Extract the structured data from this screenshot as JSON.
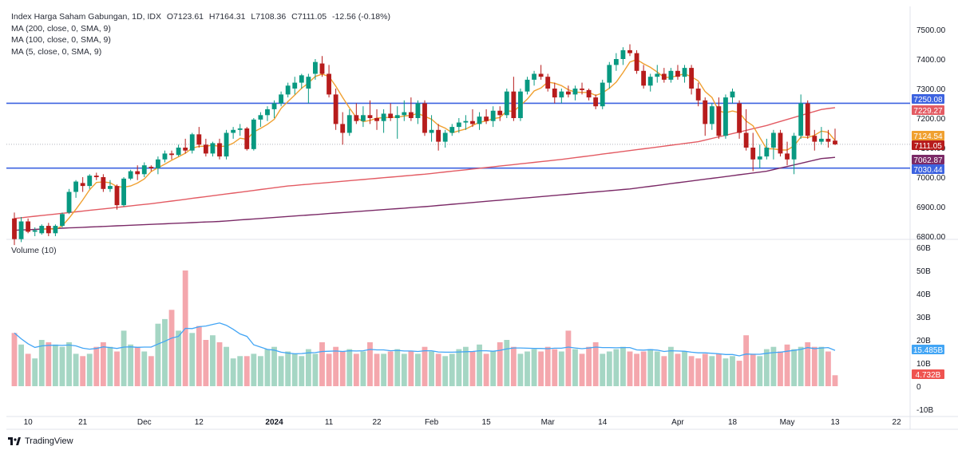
{
  "header": {
    "title": "Index Harga Saham Gabungan, 1D, IDX",
    "open": "O7123.61",
    "high": "H7164.31",
    "low": "L7108.36",
    "close": "C7111.05",
    "change": "-12.56 (-0.18%)",
    "ma200": "MA (200, close, 0, SMA, 9)",
    "ma100": "MA (100, close, 0, SMA, 9)",
    "ma5": "MA (5, close, 0, SMA, 9)"
  },
  "volume_legend": "Volume (10)",
  "brand": "TradingView",
  "colors": {
    "up": "#089981",
    "down": "#b71c1c",
    "vol_up": "#a5d6c4",
    "vol_down": "#f4a7ad",
    "ma5": "#f0a030",
    "ma100": "#e35b63",
    "ma200": "#7b2a67",
    "hline": "#3d63e0",
    "vol_ma": "#42a5f5"
  },
  "chart_data": [
    {
      "type": "candlestick",
      "title": "Index Harga Saham Gabungan, 1D, IDX",
      "y_ticks": [
        6800,
        6900,
        7000,
        7100,
        7200,
        7300,
        7400,
        7500
      ],
      "ylim": [
        6790,
        7540
      ],
      "x_tick_labels": [
        "10",
        "21",
        "Dec",
        "12",
        "2024",
        "11",
        "22",
        "Feb",
        "15",
        "Mar",
        "14",
        "Apr",
        "18",
        "May",
        "13",
        "22"
      ],
      "grid": false,
      "candles": [
        [
          6860,
          6880,
          6770,
          6790
        ],
        [
          6790,
          6865,
          6780,
          6850
        ],
        [
          6850,
          6860,
          6810,
          6815
        ],
        [
          6815,
          6830,
          6800,
          6820
        ],
        [
          6810,
          6840,
          6805,
          6835
        ],
        [
          6835,
          6845,
          6800,
          6810
        ],
        [
          6810,
          6840,
          6800,
          6835
        ],
        [
          6835,
          6880,
          6830,
          6875
        ],
        [
          6880,
          6960,
          6875,
          6950
        ],
        [
          6950,
          6990,
          6930,
          6985
        ],
        [
          6980,
          7000,
          6950,
          6970
        ],
        [
          6970,
          7010,
          6960,
          7005
        ],
        [
          7005,
          7015,
          6990,
          7000
        ],
        [
          7000,
          7010,
          6950,
          6960
        ],
        [
          6960,
          6990,
          6950,
          6970
        ],
        [
          6970,
          6975,
          6890,
          6905
        ],
        [
          6905,
          7000,
          6900,
          6995
        ],
        [
          6995,
          7025,
          6990,
          7020
        ],
        [
          7020,
          7040,
          6990,
          7010
        ],
        [
          7010,
          7050,
          7000,
          7040
        ],
        [
          7035,
          7040,
          7020,
          7030
        ],
        [
          7030,
          7070,
          7010,
          7060
        ],
        [
          7060,
          7090,
          7050,
          7080
        ],
        [
          7080,
          7090,
          7060,
          7075
        ],
        [
          7075,
          7110,
          7070,
          7100
        ],
        [
          7100,
          7130,
          7080,
          7090
        ],
        [
          7090,
          7150,
          7080,
          7145
        ],
        [
          7145,
          7170,
          7100,
          7110
        ],
        [
          7110,
          7130,
          7070,
          7080
        ],
        [
          7080,
          7120,
          7070,
          7115
        ],
        [
          7115,
          7130,
          7060,
          7070
        ],
        [
          7070,
          7160,
          7060,
          7150
        ],
        [
          7150,
          7170,
          7130,
          7160
        ],
        [
          7160,
          7180,
          7140,
          7165
        ],
        [
          7165,
          7170,
          7090,
          7095
        ],
        [
          7095,
          7200,
          7090,
          7195
        ],
        [
          7195,
          7220,
          7170,
          7210
        ],
        [
          7210,
          7240,
          7190,
          7230
        ],
        [
          7230,
          7260,
          7200,
          7250
        ],
        [
          7250,
          7290,
          7240,
          7280
        ],
        [
          7280,
          7320,
          7270,
          7310
        ],
        [
          7300,
          7340,
          7280,
          7320
        ],
        [
          7320,
          7350,
          7300,
          7345
        ],
        [
          7300,
          7350,
          7250,
          7340
        ],
        [
          7350,
          7400,
          7330,
          7390
        ],
        [
          7385,
          7410,
          7340,
          7350
        ],
        [
          7350,
          7380,
          7270,
          7280
        ],
        [
          7280,
          7300,
          7160,
          7180
        ],
        [
          7180,
          7220,
          7110,
          7150
        ],
        [
          7150,
          7230,
          7140,
          7210
        ],
        [
          7210,
          7250,
          7180,
          7190
        ],
        [
          7190,
          7240,
          7170,
          7210
        ],
        [
          7210,
          7260,
          7180,
          7200
        ],
        [
          7200,
          7230,
          7160,
          7190
        ],
        [
          7190,
          7230,
          7150,
          7215
        ],
        [
          7215,
          7250,
          7190,
          7200
        ],
        [
          7200,
          7240,
          7130,
          7210
        ],
        [
          7210,
          7260,
          7190,
          7220
        ],
        [
          7220,
          7270,
          7190,
          7200
        ],
        [
          7200,
          7260,
          7180,
          7250
        ],
        [
          7250,
          7260,
          7140,
          7150
        ],
        [
          7150,
          7210,
          7120,
          7160
        ],
        [
          7160,
          7180,
          7090,
          7120
        ],
        [
          7120,
          7160,
          7100,
          7150
        ],
        [
          7150,
          7180,
          7140,
          7170
        ],
        [
          7170,
          7200,
          7150,
          7185
        ],
        [
          7185,
          7210,
          7160,
          7190
        ],
        [
          7190,
          7230,
          7170,
          7180
        ],
        [
          7180,
          7220,
          7160,
          7205
        ],
        [
          7205,
          7230,
          7180,
          7190
        ],
        [
          7190,
          7240,
          7170,
          7225
        ],
        [
          7225,
          7240,
          7190,
          7210
        ],
        [
          7210,
          7300,
          7200,
          7290
        ],
        [
          7290,
          7340,
          7190,
          7200
        ],
        [
          7200,
          7300,
          7190,
          7290
        ],
        [
          7290,
          7340,
          7280,
          7330
        ],
        [
          7330,
          7360,
          7310,
          7350
        ],
        [
          7350,
          7380,
          7330,
          7340
        ],
        [
          7340,
          7350,
          7290,
          7300
        ],
        [
          7300,
          7320,
          7250,
          7270
        ],
        [
          7270,
          7300,
          7250,
          7290
        ],
        [
          7290,
          7310,
          7270,
          7280
        ],
        [
          7280,
          7310,
          7260,
          7300
        ],
        [
          7300,
          7320,
          7280,
          7295
        ],
        [
          7295,
          7300,
          7260,
          7270
        ],
        [
          7270,
          7280,
          7230,
          7240
        ],
        [
          7240,
          7330,
          7230,
          7320
        ],
        [
          7320,
          7390,
          7300,
          7380
        ],
        [
          7380,
          7420,
          7360,
          7400
        ],
        [
          7400,
          7440,
          7380,
          7430
        ],
        [
          7430,
          7450,
          7410,
          7420
        ],
        [
          7420,
          7430,
          7350,
          7360
        ],
        [
          7360,
          7380,
          7300,
          7310
        ],
        [
          7310,
          7350,
          7290,
          7340
        ],
        [
          7340,
          7380,
          7320,
          7350
        ],
        [
          7350,
          7370,
          7320,
          7330
        ],
        [
          7330,
          7370,
          7320,
          7360
        ],
        [
          7360,
          7380,
          7330,
          7340
        ],
        [
          7340,
          7380,
          7320,
          7370
        ],
        [
          7370,
          7380,
          7280,
          7300
        ],
        [
          7300,
          7320,
          7240,
          7260
        ],
        [
          7260,
          7270,
          7140,
          7180
        ],
        [
          7180,
          7250,
          7160,
          7240
        ],
        [
          7240,
          7270,
          7130,
          7140
        ],
        [
          7140,
          7280,
          7130,
          7270
        ],
        [
          7270,
          7300,
          7250,
          7290
        ],
        [
          7250,
          7260,
          7130,
          7150
        ],
        [
          7150,
          7230,
          7090,
          7100
        ],
        [
          7100,
          7150,
          7020,
          7060
        ],
        [
          7060,
          7110,
          7030,
          7070
        ],
        [
          7070,
          7130,
          7060,
          7100
        ],
        [
          7100,
          7160,
          7060,
          7150
        ],
        [
          7150,
          7160,
          7070,
          7080
        ],
        [
          7080,
          7120,
          7040,
          7060
        ],
        [
          7060,
          7150,
          7010,
          7140
        ],
        [
          7140,
          7280,
          7130,
          7250
        ],
        [
          7250,
          7260,
          7130,
          7140
        ],
        [
          7140,
          7160,
          7090,
          7120
        ],
        [
          7120,
          7170,
          7110,
          7130
        ],
        [
          7130,
          7160,
          7100,
          7120
        ],
        [
          7123.61,
          7164.31,
          7108.36,
          7111.05
        ]
      ],
      "horizontal_lines": [
        7250.08,
        7030.44
      ],
      "price_labels": [
        {
          "text": "7250.08",
          "value": 7250.08,
          "kind": "hline"
        },
        {
          "text": "7229.27",
          "value": 7229.27,
          "kind": "ma100"
        },
        {
          "text": "7124.54",
          "value": 7124.54,
          "kind": "ma5"
        },
        {
          "text": "7111.05",
          "value": 7111.05,
          "kind": "last"
        },
        {
          "text": "7062.87",
          "value": 7062.87,
          "kind": "ma200"
        },
        {
          "text": "7030.44",
          "value": 7030.44,
          "kind": "hline"
        }
      ],
      "ma100_anchors": [
        [
          0,
          6860
        ],
        [
          20,
          6910
        ],
        [
          40,
          6970
        ],
        [
          60,
          7010
        ],
        [
          80,
          7060
        ],
        [
          100,
          7120
        ],
        [
          110,
          7175
        ],
        [
          118,
          7229.27
        ]
      ],
      "ma200_anchors": [
        [
          0,
          6820
        ],
        [
          30,
          6850
        ],
        [
          60,
          6900
        ],
        [
          90,
          6960
        ],
        [
          110,
          7020
        ],
        [
          118,
          7062.87
        ]
      ]
    },
    {
      "type": "bar",
      "title": "Volume (10)",
      "y_ticks": [
        "60B",
        "50B",
        "40B",
        "30B",
        "20B",
        "10B",
        "0",
        "-10B"
      ],
      "y_tick_values": [
        60,
        50,
        40,
        30,
        20,
        10,
        0,
        -10
      ],
      "ylim": [
        -12,
        62
      ],
      "unit": "B",
      "volumes": [
        23,
        18,
        14,
        12,
        20,
        19,
        18,
        17,
        19,
        14,
        13,
        14,
        17,
        19,
        17,
        15,
        24,
        18,
        17,
        15,
        13,
        27,
        29,
        33,
        24,
        50,
        23,
        26,
        20,
        22,
        19,
        17,
        12,
        13,
        13,
        14,
        13,
        16,
        17,
        13,
        15,
        14,
        13,
        16,
        14,
        19,
        14,
        17,
        15,
        16,
        14,
        15,
        19,
        14,
        14,
        15,
        16,
        14,
        15,
        14,
        17,
        15,
        14,
        13,
        14,
        16,
        17,
        15,
        18,
        14,
        15,
        19,
        20,
        17,
        14,
        15,
        16,
        15,
        17,
        16,
        15,
        24,
        16,
        14,
        17,
        19,
        14,
        15,
        16,
        17,
        15,
        14,
        15,
        16,
        15,
        13,
        17,
        14,
        15,
        13,
        12,
        14,
        13,
        14,
        12,
        13,
        11,
        22,
        14,
        13,
        16,
        17,
        15,
        18,
        16,
        17,
        19,
        17,
        17,
        15,
        4.732
      ],
      "last_volume_label": "4.732B",
      "volume_ma_label": "15.485B",
      "volume_ma_last": 15.485
    }
  ]
}
